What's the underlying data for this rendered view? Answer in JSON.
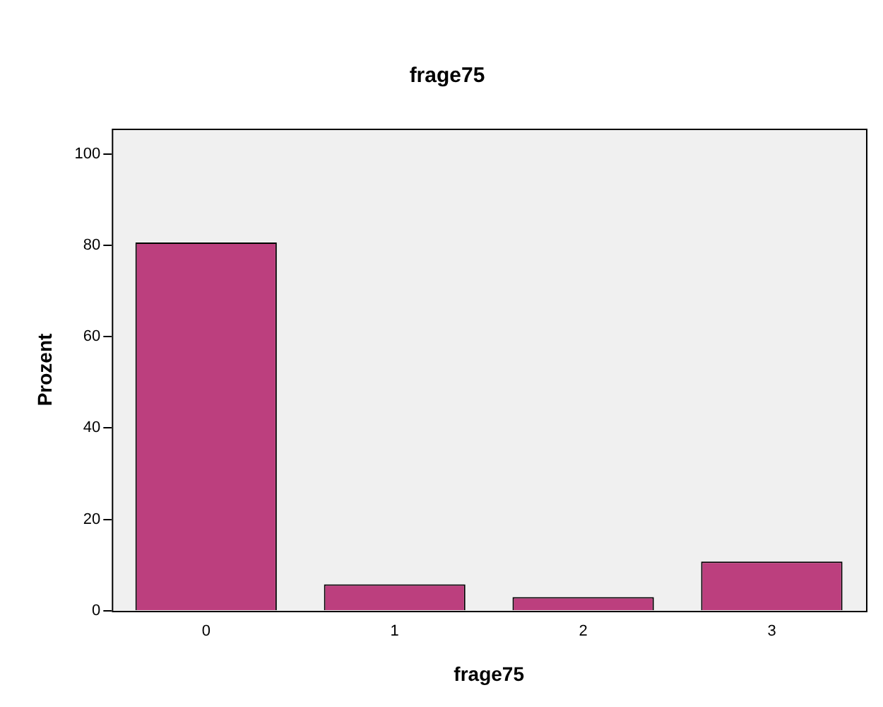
{
  "chart_data": {
    "type": "bar",
    "title": "frage75",
    "xlabel": "frage75",
    "ylabel": "Prozent",
    "categories": [
      "0",
      "1",
      "2",
      "3"
    ],
    "values": [
      80.6,
      5.8,
      3.0,
      10.8
    ],
    "color": "#bc3f7e",
    "ylim": [
      0,
      105.5
    ],
    "yticks": [
      0,
      20,
      40,
      60,
      80,
      100
    ],
    "grid": false,
    "legend": false
  }
}
